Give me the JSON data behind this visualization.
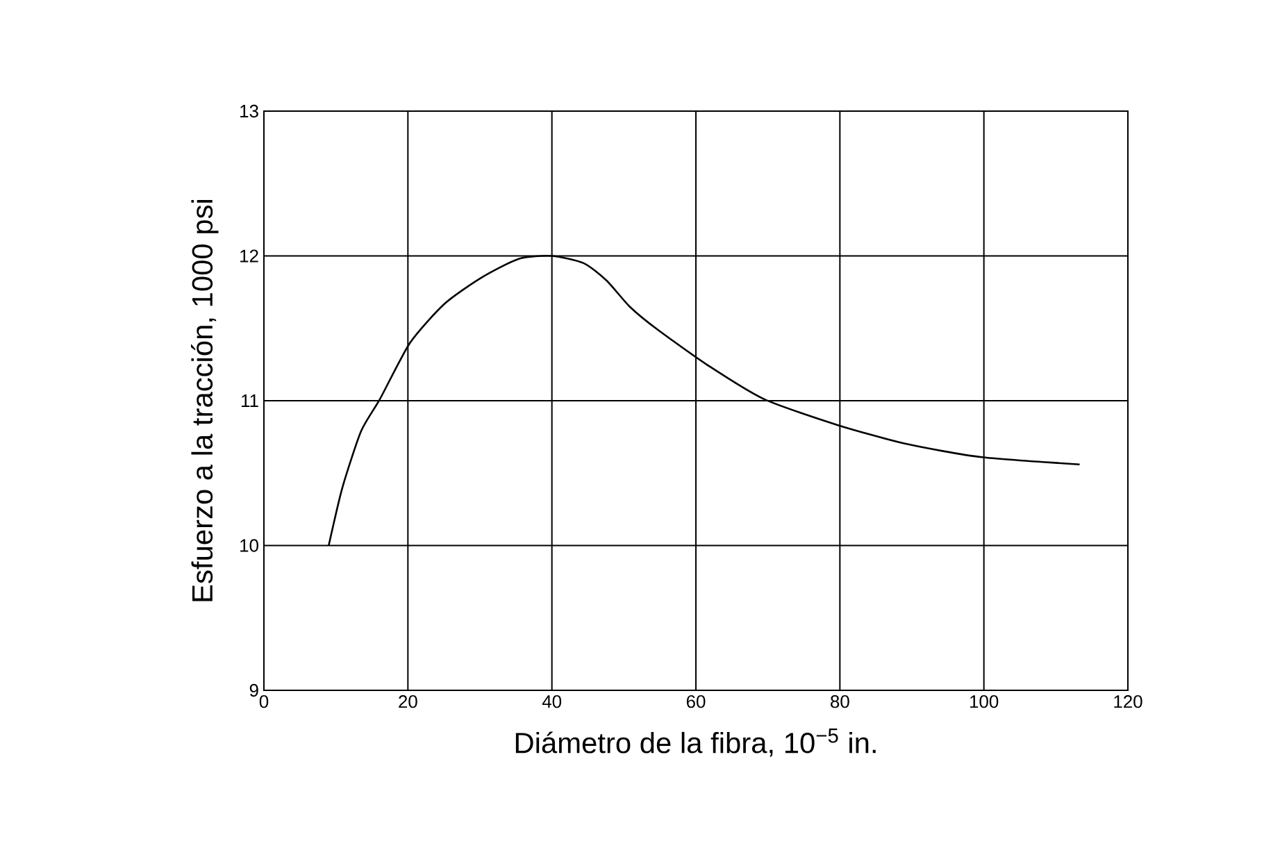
{
  "chart_data": {
    "type": "line",
    "xlabel": "Diámetro de la fibra, 10$^{−5}$ in.",
    "ylabel": "Esfuerzo a la tracción, 1000 psi",
    "xlim": [
      0,
      120
    ],
    "ylim": [
      9,
      13
    ],
    "xticks": [
      0,
      20,
      40,
      60,
      80,
      100,
      120
    ],
    "yticks": [
      9,
      10,
      11,
      12,
      13
    ],
    "grid": true,
    "series": [
      {
        "color": "#000000",
        "x": [
          9.0,
          10.9,
          13.5,
          16.1,
          20.3,
          25.1,
          30.2,
          35.4,
          40,
          44.4,
          47.6,
          50.8,
          54.7,
          61.8,
          69.5,
          79.8,
          89.4,
          99.7,
          113.3
        ],
        "values": [
          10.0,
          10.4,
          10.79,
          11.01,
          11.4,
          11.67,
          11.85,
          11.98,
          12.0,
          11.95,
          11.83,
          11.65,
          11.49,
          11.24,
          11.01,
          10.83,
          10.7,
          10.61,
          10.56
        ]
      }
    ]
  }
}
